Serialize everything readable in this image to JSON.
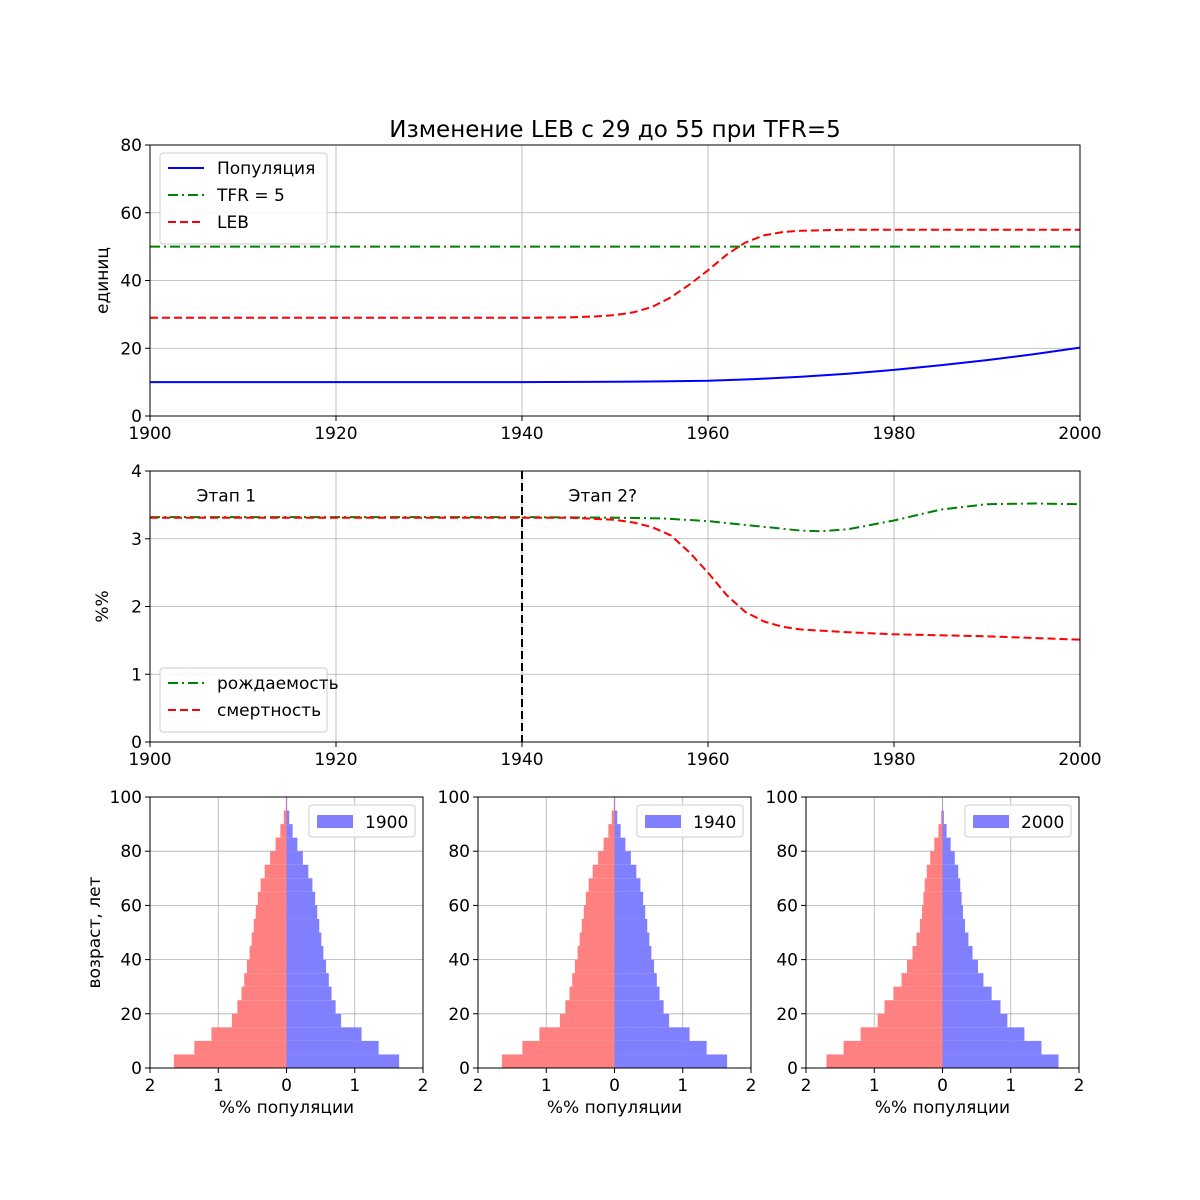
{
  "chart_data": [
    {
      "type": "line",
      "title": "Изменение LEB с 29 до 55 при TFR=5",
      "xlabel": "",
      "ylabel": "единиц",
      "xlim": [
        1900,
        2000
      ],
      "ylim": [
        0,
        80
      ],
      "xticks": [
        "1900",
        "1920",
        "1940",
        "1960",
        "1980",
        "2000"
      ],
      "yticks": [
        "0",
        "20",
        "40",
        "60",
        "80"
      ],
      "grid": true,
      "legend_position": "top-left",
      "series": [
        {
          "name": "Популяция",
          "color": "#0000ff",
          "style": "solid",
          "x": [
            1900,
            1910,
            1920,
            1930,
            1940,
            1950,
            1955,
            1960,
            1965,
            1970,
            1975,
            1980,
            1985,
            1990,
            1995,
            2000
          ],
          "y": [
            10,
            10,
            10,
            10,
            10,
            10.1,
            10.2,
            10.4,
            10.9,
            11.6,
            12.5,
            13.6,
            15.0,
            16.5,
            18.2,
            20.2
          ]
        },
        {
          "name": "TFR = 5",
          "color": "#008000",
          "style": "dashdot",
          "x": [
            1900,
            2000
          ],
          "y": [
            50,
            50
          ]
        },
        {
          "name": "LEB",
          "color": "#ff0000",
          "style": "dashed",
          "x": [
            1900,
            1940,
            1945,
            1948,
            1950,
            1952,
            1954,
            1956,
            1958,
            1960,
            1962,
            1964,
            1966,
            1968,
            1970,
            1975,
            1980,
            2000
          ],
          "y": [
            29,
            29,
            29.1,
            29.4,
            29.8,
            30.6,
            32.2,
            35.0,
            38.8,
            43.0,
            47.6,
            51.2,
            53.3,
            54.3,
            54.7,
            55,
            55,
            55
          ]
        }
      ]
    },
    {
      "type": "line",
      "title": "",
      "xlabel": "",
      "ylabel": "%%",
      "xlim": [
        1900,
        2000
      ],
      "ylim": [
        0,
        4
      ],
      "xticks": [
        "1900",
        "1920",
        "1940",
        "1960",
        "1980",
        "2000"
      ],
      "yticks": [
        "0",
        "1",
        "2",
        "3",
        "4"
      ],
      "grid": true,
      "legend_position": "bottom-left",
      "vline_x": 1940,
      "annotations": [
        {
          "text": "Этап 1",
          "x": 1905,
          "y": 3.55
        },
        {
          "text": "Этап 2?",
          "x": 1945,
          "y": 3.55
        }
      ],
      "series": [
        {
          "name": "рождаемость",
          "color": "#008000",
          "style": "dashdot",
          "x": [
            1900,
            1940,
            1950,
            1955,
            1960,
            1965,
            1970,
            1972,
            1975,
            1980,
            1985,
            1990,
            1995,
            2000
          ],
          "y": [
            3.32,
            3.32,
            3.31,
            3.3,
            3.26,
            3.19,
            3.12,
            3.11,
            3.14,
            3.27,
            3.43,
            3.51,
            3.52,
            3.51
          ]
        },
        {
          "name": "смертность",
          "color": "#ff0000",
          "style": "dashed",
          "x": [
            1900,
            1940,
            1945,
            1950,
            1952,
            1954,
            1956,
            1958,
            1960,
            1962,
            1964,
            1966,
            1968,
            1970,
            1975,
            1980,
            1990,
            2000
          ],
          "y": [
            3.31,
            3.31,
            3.31,
            3.28,
            3.24,
            3.17,
            3.05,
            2.8,
            2.5,
            2.17,
            1.92,
            1.78,
            1.7,
            1.66,
            1.62,
            1.59,
            1.56,
            1.51
          ]
        }
      ]
    },
    {
      "type": "bar",
      "orientation": "horizontal",
      "title": "",
      "xlabel": "%% популяции",
      "ylabel": "возраст, лет",
      "xlim": [
        -2,
        2
      ],
      "ylim": [
        0,
        100
      ],
      "xticks": [
        "2",
        "1",
        "0",
        "1",
        "2"
      ],
      "yticks": [
        "0",
        "20",
        "40",
        "60",
        "80",
        "100"
      ],
      "grid": true,
      "legend_position": "top-right",
      "series": [
        {
          "name": "1900",
          "color": "#8080ff",
          "side": "right",
          "ages": [
            0,
            5,
            10,
            15,
            20,
            25,
            30,
            35,
            40,
            45,
            50,
            55,
            60,
            65,
            70,
            75,
            80,
            85,
            90,
            95,
            100
          ],
          "values": [
            1.65,
            1.35,
            1.1,
            0.8,
            0.72,
            0.66,
            0.62,
            0.58,
            0.54,
            0.51,
            0.48,
            0.45,
            0.42,
            0.38,
            0.32,
            0.24,
            0.16,
            0.09,
            0.04,
            0.01,
            0
          ]
        },
        {
          "name": "",
          "color": "#ff8080",
          "side": "left",
          "ages": [
            0,
            5,
            10,
            15,
            20,
            25,
            30,
            35,
            40,
            45,
            50,
            55,
            60,
            65,
            70,
            75,
            80,
            85,
            90,
            95,
            100
          ],
          "values": [
            1.65,
            1.35,
            1.1,
            0.8,
            0.72,
            0.66,
            0.62,
            0.58,
            0.54,
            0.51,
            0.48,
            0.45,
            0.42,
            0.38,
            0.32,
            0.24,
            0.16,
            0.09,
            0.04,
            0.01,
            0
          ]
        }
      ]
    },
    {
      "type": "bar",
      "orientation": "horizontal",
      "title": "",
      "xlabel": "%% популяции",
      "ylabel": "",
      "xlim": [
        -2,
        2
      ],
      "ylim": [
        0,
        100
      ],
      "xticks": [
        "2",
        "1",
        "0",
        "1",
        "2"
      ],
      "yticks": [
        "0",
        "20",
        "40",
        "60",
        "80",
        "100"
      ],
      "grid": true,
      "legend_position": "top-right",
      "series": [
        {
          "name": "1940",
          "color": "#8080ff",
          "side": "right",
          "ages": [
            0,
            5,
            10,
            15,
            20,
            25,
            30,
            35,
            40,
            45,
            50,
            55,
            60,
            65,
            70,
            75,
            80,
            85,
            90,
            95,
            100
          ],
          "values": [
            1.65,
            1.35,
            1.1,
            0.8,
            0.72,
            0.66,
            0.62,
            0.58,
            0.54,
            0.51,
            0.48,
            0.45,
            0.42,
            0.38,
            0.32,
            0.24,
            0.16,
            0.09,
            0.04,
            0.01,
            0
          ]
        },
        {
          "name": "",
          "color": "#ff8080",
          "side": "left",
          "ages": [
            0,
            5,
            10,
            15,
            20,
            25,
            30,
            35,
            40,
            45,
            50,
            55,
            60,
            65,
            70,
            75,
            80,
            85,
            90,
            95,
            100
          ],
          "values": [
            1.65,
            1.35,
            1.1,
            0.8,
            0.72,
            0.66,
            0.62,
            0.58,
            0.54,
            0.51,
            0.48,
            0.45,
            0.42,
            0.38,
            0.32,
            0.24,
            0.16,
            0.09,
            0.04,
            0.01,
            0
          ]
        }
      ]
    },
    {
      "type": "bar",
      "orientation": "horizontal",
      "title": "",
      "xlabel": "%% популяции",
      "ylabel": "",
      "xlim": [
        -2,
        2
      ],
      "ylim": [
        0,
        100
      ],
      "xticks": [
        "2",
        "1",
        "0",
        "1",
        "2"
      ],
      "yticks": [
        "0",
        "20",
        "40",
        "60",
        "80",
        "100"
      ],
      "grid": true,
      "legend_position": "top-right",
      "series": [
        {
          "name": "2000",
          "color": "#8080ff",
          "side": "right",
          "ages": [
            0,
            5,
            10,
            15,
            20,
            25,
            30,
            35,
            40,
            45,
            50,
            55,
            60,
            65,
            70,
            75,
            80,
            85,
            90,
            95,
            100
          ],
          "values": [
            1.7,
            1.45,
            1.2,
            0.95,
            0.85,
            0.72,
            0.6,
            0.52,
            0.44,
            0.38,
            0.33,
            0.3,
            0.28,
            0.26,
            0.23,
            0.18,
            0.12,
            0.06,
            0.02,
            0.005,
            0
          ]
        },
        {
          "name": "",
          "color": "#ff8080",
          "side": "left",
          "ages": [
            0,
            5,
            10,
            15,
            20,
            25,
            30,
            35,
            40,
            45,
            50,
            55,
            60,
            65,
            70,
            75,
            80,
            85,
            90,
            95,
            100
          ],
          "values": [
            1.7,
            1.45,
            1.2,
            0.95,
            0.85,
            0.72,
            0.6,
            0.52,
            0.44,
            0.38,
            0.33,
            0.3,
            0.28,
            0.26,
            0.23,
            0.18,
            0.12,
            0.06,
            0.02,
            0.005,
            0
          ]
        }
      ]
    }
  ]
}
